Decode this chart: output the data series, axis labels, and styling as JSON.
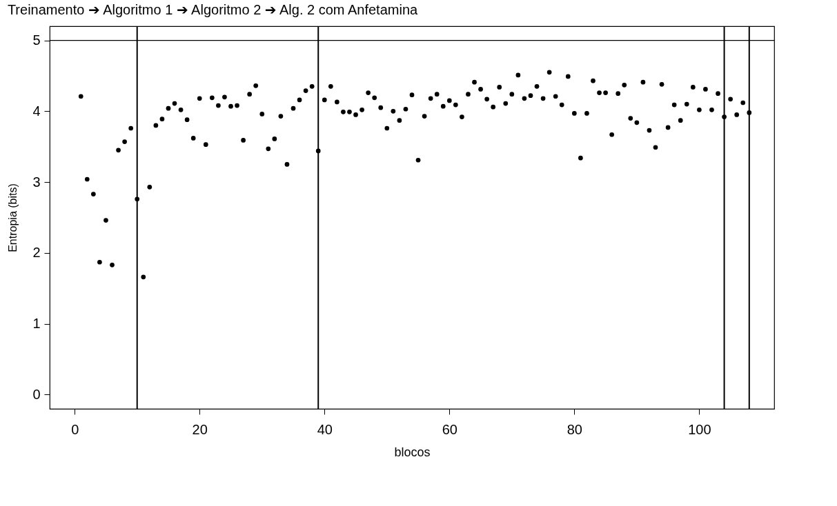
{
  "chart_data": {
    "type": "scatter",
    "title": "Treinamento ➔ Algoritmo 1 ➔ Algoritmo 2 ➔ Alg. 2 com Anfetamina",
    "xlabel": "blocos",
    "ylabel": "Entropia (bits)",
    "x": [
      1,
      2,
      3,
      4,
      5,
      6,
      7,
      8,
      9,
      10,
      11,
      12,
      13,
      14,
      15,
      16,
      17,
      18,
      19,
      20,
      21,
      22,
      23,
      24,
      25,
      26,
      27,
      28,
      29,
      30,
      31,
      32,
      33,
      34,
      35,
      36,
      37,
      38,
      39,
      40,
      41,
      42,
      43,
      44,
      45,
      46,
      47,
      48,
      49,
      50,
      51,
      52,
      53,
      54,
      55,
      56,
      57,
      58,
      59,
      60,
      61,
      62,
      63,
      64,
      65,
      66,
      67,
      68,
      69,
      70,
      71,
      72,
      73,
      74,
      75,
      76,
      77,
      78,
      79,
      80,
      81,
      82,
      83,
      84,
      85,
      86,
      87,
      88,
      89,
      90,
      91,
      92,
      93,
      94,
      95,
      96,
      97,
      98,
      99,
      100,
      101,
      102,
      103,
      104,
      105,
      106,
      107,
      108
    ],
    "series": [
      {
        "color": "#000000",
        "values": [
          4.21,
          3.04,
          2.83,
          1.87,
          2.46,
          1.83,
          3.45,
          3.57,
          3.76,
          2.76,
          1.66,
          2.93,
          3.8,
          3.89,
          4.04,
          4.11,
          4.02,
          3.88,
          3.62,
          4.18,
          3.53,
          4.19,
          4.08,
          4.2,
          4.07,
          4.08,
          3.59,
          4.24,
          4.36,
          3.96,
          3.47,
          3.61,
          3.93,
          3.25,
          4.04,
          4.16,
          4.29,
          4.35,
          3.44,
          4.16,
          4.35,
          4.13,
          3.99,
          3.99,
          3.95,
          4.02,
          4.26,
          4.19,
          4.05,
          3.76,
          4.0,
          3.87,
          4.03,
          4.23,
          3.31,
          3.93,
          4.18,
          4.24,
          4.07,
          4.15,
          4.09,
          3.92,
          4.24,
          4.41,
          4.31,
          4.17,
          4.06,
          4.34,
          4.11,
          4.24,
          4.51,
          4.18,
          4.22,
          4.35,
          4.18,
          4.55,
          4.21,
          4.09,
          4.49,
          3.97,
          3.34,
          3.97,
          4.43,
          4.26,
          4.26,
          3.67,
          4.25,
          4.37,
          3.9,
          3.84,
          4.41,
          3.73,
          3.49,
          4.38,
          3.77,
          4.09,
          3.87,
          4.1,
          4.34,
          4.02,
          4.31,
          4.02,
          4.25,
          3.92,
          4.17,
          3.95,
          4.12,
          3.98
        ]
      }
    ],
    "xlim": [
      -4,
      112
    ],
    "ylim": [
      -0.2,
      5.2
    ],
    "xticks": [
      0,
      20,
      40,
      60,
      80,
      100
    ],
    "yticks": [
      0,
      1,
      2,
      3,
      4,
      5
    ],
    "marker": "circle",
    "ref_lines": [
      {
        "axis": "x",
        "value": 10
      },
      {
        "axis": "x",
        "value": 39
      },
      {
        "axis": "x",
        "value": 104
      },
      {
        "axis": "x",
        "value": 108
      },
      {
        "axis": "y",
        "value": 5
      }
    ]
  }
}
